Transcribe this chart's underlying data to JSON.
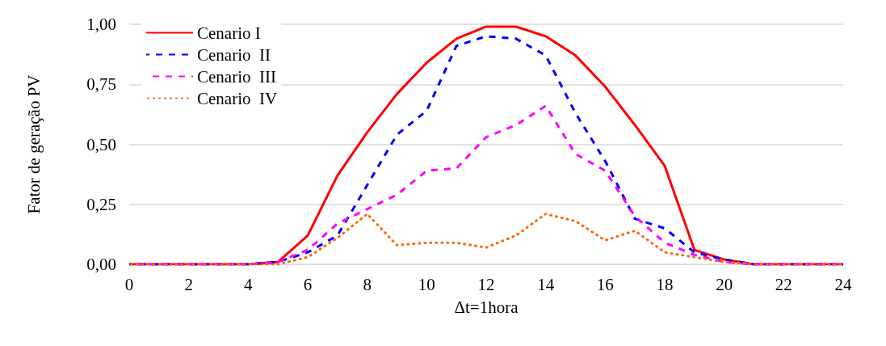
{
  "chart_data": {
    "type": "line",
    "xlabel": "Δt=1hora",
    "ylabel": "Fator de geração PV",
    "x": [
      0,
      1,
      2,
      3,
      4,
      5,
      6,
      7,
      8,
      9,
      10,
      11,
      12,
      13,
      14,
      15,
      16,
      17,
      18,
      19,
      20,
      21,
      22,
      23,
      24
    ],
    "series": [
      {
        "name": "Cenario I",
        "color": "#ff0000",
        "line_style": "solid",
        "values": [
          0,
          0,
          0,
          0,
          0,
          0.01,
          0.12,
          0.37,
          0.55,
          0.71,
          0.84,
          0.94,
          0.99,
          0.99,
          0.95,
          0.87,
          0.74,
          0.58,
          0.41,
          0.06,
          0.02,
          0,
          0,
          0,
          0
        ]
      },
      {
        "name": "Cenario  II",
        "color": "#0000ff",
        "line_style": "dashed",
        "values": [
          0,
          0,
          0,
          0,
          0,
          0.01,
          0.05,
          0.12,
          0.33,
          0.54,
          0.64,
          0.91,
          0.95,
          0.94,
          0.87,
          0.63,
          0.43,
          0.19,
          0.15,
          0.05,
          0.02,
          0,
          0,
          0,
          0
        ]
      },
      {
        "name": "Cenario  III",
        "color": "#ff00ff",
        "line_style": "dashed",
        "values": [
          0,
          0,
          0,
          0,
          0,
          0.01,
          0.06,
          0.17,
          0.23,
          0.29,
          0.39,
          0.4,
          0.53,
          0.58,
          0.66,
          0.46,
          0.39,
          0.2,
          0.09,
          0.04,
          0.01,
          0,
          0,
          0,
          0
        ]
      },
      {
        "name": "Cenario  IV",
        "color": "#ff6600",
        "line_style": "dotted",
        "values": [
          0,
          0,
          0,
          0,
          0,
          0,
          0.03,
          0.11,
          0.21,
          0.08,
          0.09,
          0.09,
          0.07,
          0.12,
          0.21,
          0.18,
          0.1,
          0.14,
          0.05,
          0.03,
          0.01,
          0,
          0,
          0,
          0
        ]
      }
    ],
    "xlim": [
      0,
      24
    ],
    "xticks": [
      0,
      2,
      4,
      6,
      8,
      10,
      12,
      14,
      16,
      18,
      20,
      22,
      24
    ],
    "ylim": [
      0,
      1
    ],
    "yticks": [
      {
        "value": 0,
        "label": "0,00"
      },
      {
        "value": 0.25,
        "label": "0,25"
      },
      {
        "value": 0.5,
        "label": "0,50"
      },
      {
        "value": 0.75,
        "label": "0,75"
      },
      {
        "value": 1,
        "label": "1,00"
      }
    ],
    "grid": "y",
    "legend": "top left",
    "marker": "none"
  }
}
